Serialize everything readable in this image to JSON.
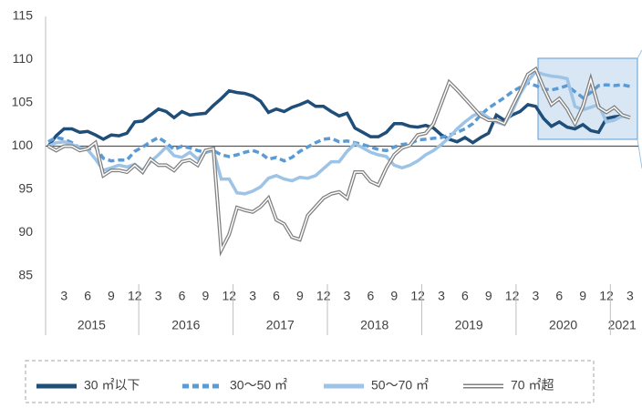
{
  "chart_data": {
    "type": "line",
    "categories": [
      null,
      null,
      "3",
      null,
      null,
      "6",
      null,
      null,
      "9",
      null,
      null,
      "12",
      null,
      null,
      "3",
      null,
      null,
      "6",
      null,
      null,
      "9",
      null,
      null,
      "12",
      null,
      null,
      "3",
      null,
      null,
      "6",
      null,
      null,
      "9",
      null,
      null,
      "12",
      null,
      null,
      "3",
      null,
      null,
      "6",
      null,
      null,
      "9",
      null,
      null,
      "12",
      null,
      null,
      "3",
      null,
      null,
      "6",
      null,
      null,
      "9",
      null,
      null,
      "12",
      null,
      null,
      "3",
      null,
      null,
      "6",
      null,
      null,
      "9",
      null,
      null,
      "12",
      null,
      null,
      "3"
    ],
    "year_labels": [
      "2015",
      "2016",
      "2017",
      "2018",
      "2019",
      "2020",
      "2021"
    ],
    "ylim": [
      85,
      115
    ],
    "yticks": [
      85,
      90,
      95,
      100,
      105,
      110,
      115
    ],
    "baseline": 100,
    "series": [
      {
        "name": "30 ㎡以下",
        "color": "#1f4e79",
        "style": "solid",
        "values": [
          100,
          101.2,
          102,
          102,
          101.6,
          101.7,
          101.3,
          100.8,
          101.3,
          101.2,
          101.5,
          102.8,
          102.9,
          103.6,
          104.3,
          104,
          103.3,
          104,
          103.6,
          103.7,
          103.8,
          104.7,
          105.5,
          106.4,
          106.2,
          106.1,
          105.8,
          105.2,
          103.9,
          104.3,
          104,
          104.5,
          104.8,
          105.2,
          104.6,
          104.6,
          104,
          103.5,
          103.8,
          102.1,
          101.6,
          101.1,
          101.1,
          101.6,
          102.6,
          102.6,
          102.3,
          102.2,
          102.4,
          102.1,
          101.3,
          100.8,
          100.5,
          101,
          100.4,
          101,
          101.5,
          103.6,
          103,
          103.6,
          104,
          104.8,
          104.6,
          103.2,
          102.3,
          102.8,
          102.2,
          102,
          102.5,
          101.8,
          101.6,
          103.2,
          103.4,
          103.5,
          103.3
        ]
      },
      {
        "name": "30～50 ㎡",
        "color": "#5b9bd5",
        "style": "dashed",
        "values": [
          100.5,
          101,
          100.8,
          100.4,
          99.8,
          99.6,
          99.9,
          98.6,
          98.3,
          98.4,
          98.4,
          99.4,
          99.9,
          100.5,
          101,
          100.4,
          99.6,
          100,
          99.8,
          99.5,
          99.3,
          99.5,
          99,
          98.8,
          99,
          99.3,
          99.5,
          99.2,
          98.5,
          98.7,
          98.3,
          98.7,
          99.4,
          99.9,
          100.4,
          100.8,
          100.9,
          100.5,
          100.6,
          100.4,
          100.2,
          99.9,
          99.6,
          99.5,
          99.9,
          100.2,
          100.3,
          100.7,
          100.8,
          100.9,
          101,
          101.3,
          101.6,
          102,
          102.6,
          103.6,
          104.4,
          105,
          105.6,
          106.3,
          106.8,
          107.3,
          107,
          106.6,
          106.5,
          106.7,
          107,
          106.3,
          105.6,
          106.2,
          107,
          107.1,
          107,
          107.1,
          106.9
        ]
      },
      {
        "name": "50～70 ㎡",
        "color": "#9dc3e6",
        "style": "solid",
        "values": [
          100,
          100.4,
          100.5,
          100.2,
          99.8,
          99.6,
          98.5,
          97.2,
          97.5,
          97.8,
          97.6,
          97.9,
          97.2,
          98.2,
          99,
          99.9,
          98.9,
          98.7,
          99.3,
          98.5,
          99.4,
          99.5,
          96.2,
          96.2,
          94.6,
          94.5,
          94.8,
          95.3,
          96.3,
          96.6,
          96.2,
          96,
          96.4,
          96.3,
          96.6,
          97.4,
          98.2,
          98.2,
          99.4,
          100.3,
          99.8,
          99.3,
          99,
          98.8,
          97.8,
          97.5,
          97.8,
          98.3,
          99,
          99.5,
          100.2,
          101,
          102,
          102.8,
          103.5,
          103.9,
          103.3,
          102.8,
          102.5,
          104,
          106,
          107.5,
          108.6,
          108.3,
          108.1,
          108,
          107.8,
          104.6,
          104.2,
          104.5,
          104.8,
          102.8,
          103,
          103.5,
          103.3
        ]
      },
      {
        "name": "70 ㎡超",
        "color": "#7f7f7f",
        "style": "double",
        "values": [
          100,
          99.5,
          100,
          100,
          99.5,
          99.7,
          100.4,
          96.6,
          97.2,
          97.2,
          97,
          97.8,
          97,
          98.5,
          97.8,
          97.8,
          97.2,
          98.2,
          98.4,
          97.8,
          99.5,
          99.7,
          88,
          89.8,
          92.9,
          92.6,
          92.4,
          93,
          94,
          91.5,
          91,
          89.5,
          89.2,
          92,
          93,
          94,
          94.5,
          94.7,
          94,
          97,
          97,
          95.9,
          95.5,
          97.5,
          99,
          99.8,
          100.1,
          101.3,
          101.5,
          102.6,
          105,
          107.4,
          106.5,
          105.5,
          104.5,
          103.5,
          103,
          103,
          102.6,
          104.5,
          106.3,
          108.3,
          108.9,
          106.7,
          104.8,
          105.5,
          104.3,
          102.6,
          104.6,
          107.7,
          104.5,
          103.9,
          104.5,
          103.6,
          103.3
        ]
      }
    ]
  }
}
